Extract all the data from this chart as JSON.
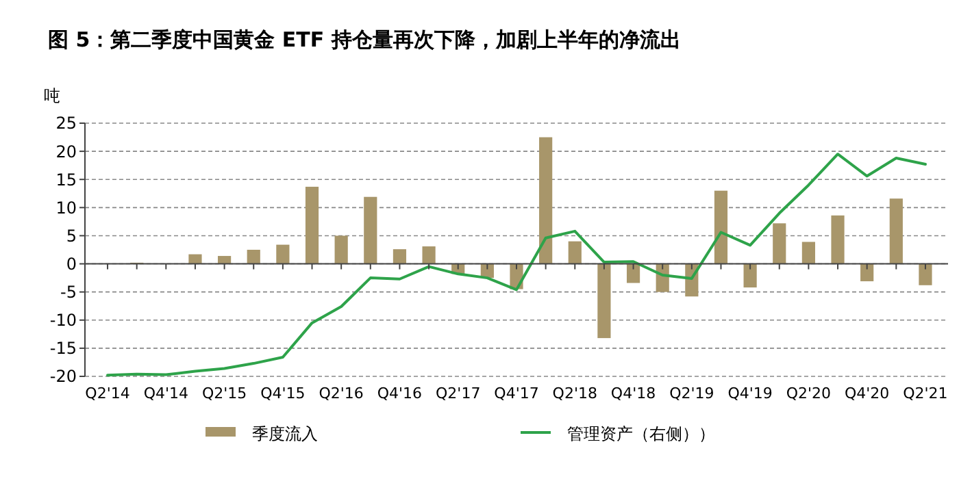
{
  "chart_data": {
    "type": "bar",
    "title": "图 5：第二季度中国黄金 ETF 持仓量再次下降，加剧上半年的净流出",
    "ylabel": "吨",
    "categories": [
      "Q2'14",
      null,
      "Q4'14",
      null,
      "Q2'15",
      null,
      "Q4'15",
      null,
      "Q2'16",
      null,
      "Q4'16",
      null,
      "Q2'17",
      null,
      "Q4'17",
      null,
      "Q2'18",
      null,
      "Q4'18",
      null,
      "Q2'19",
      null,
      "Q4'19",
      null,
      "Q2'20",
      null,
      "Q4'20",
      null,
      "Q2'21"
    ],
    "series": [
      {
        "name": "季度流入",
        "color": "#a8966a",
        "values": [
          0,
          0.2,
          0,
          1.7,
          1.4,
          2.5,
          3.4,
          13.7,
          5.0,
          11.9,
          2.6,
          3.1,
          -1.8,
          -2.5,
          -4.5,
          22.5,
          4.0,
          -13.2,
          -3.4,
          -5.0,
          -5.8,
          13.0,
          -4.2,
          7.2,
          3.9,
          8.6,
          -3.1,
          11.6,
          -3.8
        ]
      },
      {
        "name": "管理资产（右侧））",
        "type": "line",
        "color": "#2ea34a",
        "values": [
          -19.8,
          -19.6,
          -19.7,
          -19.1,
          -18.6,
          -17.7,
          -16.6,
          -10.5,
          -7.6,
          -2.5,
          -2.7,
          -0.5,
          -1.8,
          -2.5,
          -4.6,
          4.6,
          5.8,
          0.3,
          0.4,
          -2.0,
          -2.6,
          5.6,
          3.3,
          9.0,
          14.0,
          19.5,
          15.6,
          18.8,
          17.7
        ]
      }
    ],
    "ylim": [
      -20,
      25
    ],
    "yticks": [
      -20,
      -15,
      -10,
      -5,
      0,
      5,
      10,
      15,
      20,
      25
    ],
    "grid": "y",
    "legend": "bottom",
    "marker": "none",
    "line_style": "solid"
  }
}
